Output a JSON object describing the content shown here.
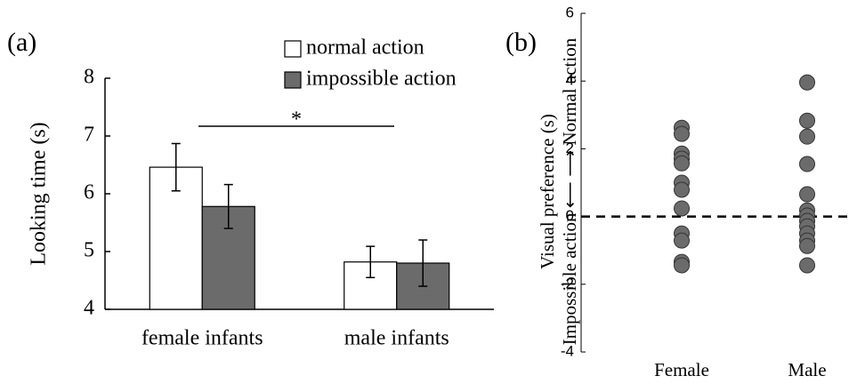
{
  "chart_data": [
    {
      "type": "bar",
      "annotation": "(a)",
      "ylabel": "Looking time (s)",
      "categories": [
        "female infants",
        "male infants"
      ],
      "series": [
        {
          "name": "normal action",
          "color": "#ffffff",
          "values": [
            6.46,
            4.82
          ],
          "errors": [
            0.41,
            0.27
          ]
        },
        {
          "name": "impossible action",
          "color": "#6b6b6b",
          "values": [
            5.78,
            4.8
          ],
          "errors": [
            0.38,
            0.4
          ]
        }
      ],
      "ylim": [
        4,
        8
      ],
      "yticks": [
        4,
        5,
        6,
        7,
        8
      ],
      "significance": {
        "label": "*",
        "y": 7.17
      }
    },
    {
      "type": "strip",
      "annotation": "(b)",
      "ylabel": [
        "Visual preference (s)",
        "Impossible action ⟵ ⟶ Normal action"
      ],
      "categories": [
        "Female",
        "Male"
      ],
      "color": "#6b6b6b",
      "values": [
        [
          2.62,
          2.44,
          1.86,
          1.71,
          1.57,
          1.0,
          0.79,
          0.24,
          -0.5,
          -0.71,
          -1.34,
          -1.44
        ],
        [
          3.96,
          2.83,
          2.36,
          1.55,
          0.66,
          0.18,
          0.03,
          -0.13,
          -0.29,
          -0.5,
          -0.71,
          -0.87,
          -1.44
        ]
      ],
      "ylim": [
        -4,
        6
      ],
      "yticks": [
        -4,
        -2,
        0,
        2,
        4,
        6
      ],
      "hline": 0
    }
  ]
}
